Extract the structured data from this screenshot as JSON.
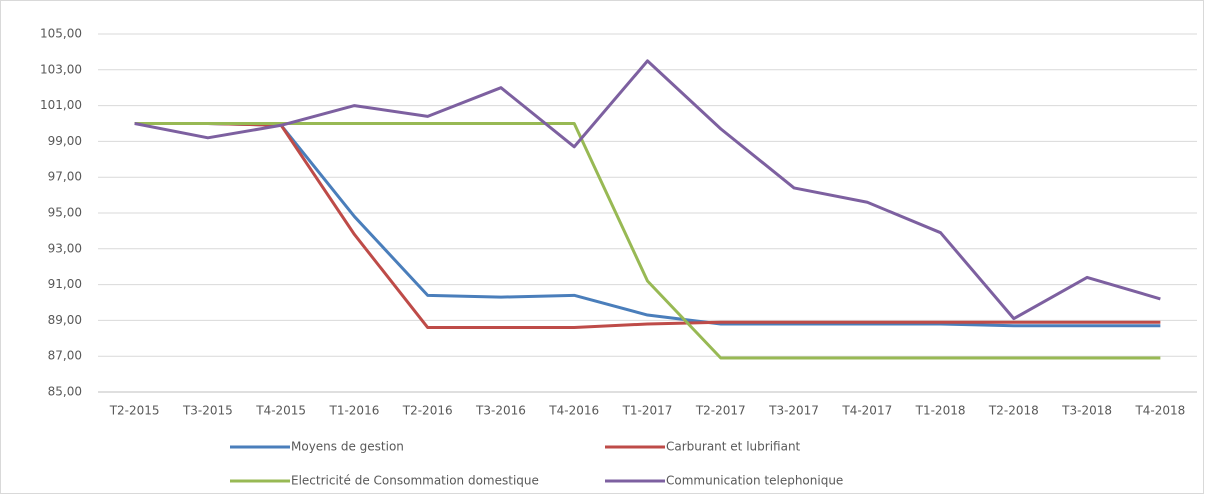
{
  "chart_data": {
    "type": "line",
    "categories": [
      "T2-2015",
      "T3-2015",
      "T4-2015",
      "T1-2016",
      "T2-2016",
      "T3-2016",
      "T4-2016",
      "T1-2017",
      "T2-2017",
      "T3-2017",
      "T4-2017",
      "T1-2018",
      "T2-2018",
      "T3-2018",
      "T4-2018"
    ],
    "series": [
      {
        "name": "Moyens de gestion",
        "color": "#4a7ebb",
        "values": [
          100,
          100,
          99.9,
          94.8,
          90.4,
          90.3,
          90.4,
          89.3,
          88.8,
          88.8,
          88.8,
          88.8,
          88.7,
          88.7,
          88.7
        ]
      },
      {
        "name": "Carburant et lubrifiant",
        "color": "#be4b48",
        "values": [
          100,
          100,
          99.9,
          93.8,
          88.6,
          88.6,
          88.6,
          88.8,
          88.9,
          88.9,
          88.9,
          88.9,
          88.9,
          88.9,
          88.9
        ]
      },
      {
        "name": "Electricité de Consommation domestique",
        "color": "#98b954",
        "values": [
          100,
          100,
          100,
          100,
          100,
          100,
          100,
          91.2,
          86.9,
          86.9,
          86.9,
          86.9,
          86.9,
          86.9,
          86.9
        ]
      },
      {
        "name": "Communication telephonique",
        "color": "#7d60a0",
        "values": [
          100,
          99.2,
          99.9,
          101.0,
          100.4,
          102.0,
          98.7,
          103.5,
          99.7,
          96.4,
          95.6,
          93.9,
          89.1,
          91.4,
          90.2
        ]
      }
    ],
    "ylim": [
      85,
      105
    ],
    "yticks": [
      {
        "value": 85,
        "label": "85,00"
      },
      {
        "value": 87,
        "label": "87,00"
      },
      {
        "value": 89,
        "label": "89,00"
      },
      {
        "value": 91,
        "label": "91,00"
      },
      {
        "value": 93,
        "label": "93,00"
      },
      {
        "value": 95,
        "label": "95,00"
      },
      {
        "value": 97,
        "label": "97,00"
      },
      {
        "value": 99,
        "label": "99,00"
      },
      {
        "value": 101,
        "label": "101,00"
      },
      {
        "value": 103,
        "label": "103,00"
      },
      {
        "value": 105,
        "label": "105,00"
      }
    ],
    "grid": true
  }
}
